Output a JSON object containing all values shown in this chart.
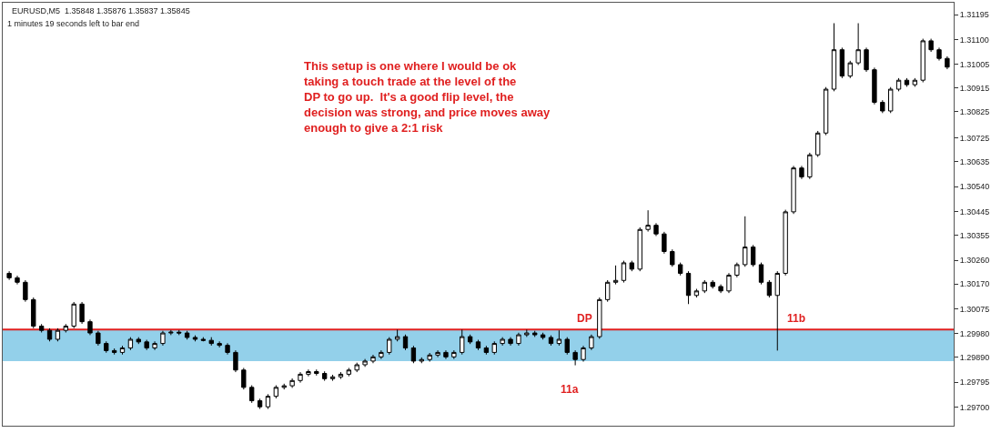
{
  "chart_data": {
    "type": "candlestick",
    "annotations": [
      "EURUSD,M5  1.35848 1.35876 1.35837 1.35845",
      "1 minutes 19 seconds left to bar end",
      "This setup is one where I would be ok taking a touch trade at the level of the DP to go up.  It's a good flip level, the decision was strong, and price moves away enough to give a 2:1 risk",
      "DP",
      "11a",
      "11b"
    ],
    "categories": [
      null,
      null,
      null,
      null,
      null,
      null,
      null,
      null,
      null,
      null,
      null,
      null,
      null,
      null,
      null,
      null,
      null,
      null,
      null,
      null,
      null,
      null,
      null,
      null,
      null,
      null,
      null,
      null,
      null,
      null,
      null,
      null,
      null,
      null,
      null,
      null,
      null,
      null,
      null,
      null,
      null,
      null,
      null,
      null,
      null,
      null,
      null,
      null,
      null,
      null,
      null,
      null,
      null,
      null,
      null,
      null,
      null,
      null,
      null,
      null,
      null,
      null,
      null,
      null,
      null,
      null,
      null,
      null,
      null,
      null,
      null,
      null,
      null,
      null,
      null,
      null,
      null,
      null,
      null,
      null,
      null,
      null,
      null,
      null,
      null,
      null,
      null,
      null,
      null,
      null,
      null,
      null,
      null,
      null,
      null,
      null,
      null,
      null,
      null,
      null,
      null,
      null,
      null,
      null,
      null,
      null,
      null,
      null,
      null,
      null,
      null,
      null,
      null,
      null,
      null,
      null,
      null
    ],
    "ohlc": [
      [
        1.3021,
        1.30218,
        1.30185,
        1.30193
      ],
      [
        1.30193,
        1.30201,
        1.30168,
        1.30176
      ],
      [
        1.30176,
        1.30184,
        1.30102,
        1.3011
      ],
      [
        1.3011,
        1.30118,
        1.30001,
        1.30009
      ],
      [
        1.30009,
        1.30017,
        1.29985,
        1.29993
      ],
      [
        1.29993,
        1.30001,
        1.29951,
        1.29959
      ],
      [
        1.29959,
        1.30001,
        1.29951,
        1.29993
      ],
      [
        1.29993,
        1.30017,
        1.29985,
        1.30009
      ],
      [
        1.30009,
        1.30101,
        1.30001,
        1.30093
      ],
      [
        1.30093,
        1.30101,
        1.30018,
        1.30026
      ],
      [
        1.30026,
        1.30034,
        1.29975,
        1.29983
      ],
      [
        1.29983,
        1.29991,
        1.29935,
        1.29943
      ],
      [
        1.29943,
        1.29951,
        1.29908,
        1.29916
      ],
      [
        1.29916,
        1.29924,
        1.29901,
        1.29909
      ],
      [
        1.29909,
        1.29934,
        1.29901,
        1.29926
      ],
      [
        1.29926,
        1.29967,
        1.29918,
        1.29959
      ],
      [
        1.29959,
        1.29967,
        1.29941,
        1.29949
      ],
      [
        1.29949,
        1.29957,
        1.29918,
        1.29926
      ],
      [
        1.29926,
        1.29951,
        1.29918,
        1.29943
      ],
      [
        1.29943,
        1.29991,
        1.29935,
        1.29983
      ],
      [
        1.29983,
        1.29994,
        1.29975,
        1.29986
      ],
      [
        1.29986,
        1.29994,
        1.29975,
        1.29983
      ],
      [
        1.29983,
        1.29991,
        1.29958,
        1.29966
      ],
      [
        1.29966,
        1.29974,
        1.29951,
        1.29959
      ],
      [
        1.29959,
        1.29967,
        1.29951,
        1.29955
      ],
      [
        1.29955,
        1.29967,
        1.29935,
        1.29943
      ],
      [
        1.29943,
        1.29951,
        1.29928,
        1.29936
      ],
      [
        1.29936,
        1.29944,
        1.29901,
        1.29909
      ],
      [
        1.29909,
        1.29917,
        1.29834,
        1.29842
      ],
      [
        1.29842,
        1.2985,
        1.29768,
        1.29776
      ],
      [
        1.29776,
        1.29784,
        1.29717,
        1.29725
      ],
      [
        1.29725,
        1.29733,
        1.29694,
        1.29702
      ],
      [
        1.29702,
        1.2975,
        1.29694,
        1.29742
      ],
      [
        1.29742,
        1.29784,
        1.29734,
        1.29776
      ],
      [
        1.29776,
        1.2979,
        1.29768,
        1.29782
      ],
      [
        1.29782,
        1.2981,
        1.29774,
        1.29802
      ],
      [
        1.29802,
        1.29834,
        1.29794,
        1.29826
      ],
      [
        1.29826,
        1.29844,
        1.29818,
        1.29836
      ],
      [
        1.29836,
        1.29844,
        1.29821,
        1.29829
      ],
      [
        1.29829,
        1.29837,
        1.29801,
        1.29809
      ],
      [
        1.29809,
        1.29824,
        1.29801,
        1.29816
      ],
      [
        1.29816,
        1.29834,
        1.29808,
        1.29826
      ],
      [
        1.29826,
        1.2985,
        1.29818,
        1.29842
      ],
      [
        1.29842,
        1.2987,
        1.29834,
        1.29862
      ],
      [
        1.29862,
        1.29884,
        1.29854,
        1.29876
      ],
      [
        1.29876,
        1.299,
        1.29868,
        1.29892
      ],
      [
        1.29892,
        1.29917,
        1.29884,
        1.29909
      ],
      [
        1.29909,
        1.29967,
        1.29901,
        1.29959
      ],
      [
        1.29959,
        1.29996,
        1.29951,
        1.29969
      ],
      [
        1.29969,
        1.29977,
        1.29918,
        1.29926
      ],
      [
        1.29926,
        1.29934,
        1.29868,
        1.29876
      ],
      [
        1.29876,
        1.2989,
        1.29868,
        1.29882
      ],
      [
        1.29882,
        1.29907,
        1.29874,
        1.29899
      ],
      [
        1.29899,
        1.29917,
        1.29891,
        1.29909
      ],
      [
        1.29909,
        1.29917,
        1.29884,
        1.29892
      ],
      [
        1.29892,
        1.29917,
        1.29884,
        1.29909
      ],
      [
        1.29909,
        1.29996,
        1.29901,
        1.29969
      ],
      [
        1.29969,
        1.29977,
        1.29941,
        1.29949
      ],
      [
        1.29949,
        1.29957,
        1.29918,
        1.29926
      ],
      [
        1.29926,
        1.29934,
        1.29901,
        1.29909
      ],
      [
        1.29909,
        1.29951,
        1.29901,
        1.29943
      ],
      [
        1.29943,
        1.29967,
        1.29935,
        1.29959
      ],
      [
        1.29959,
        1.29967,
        1.29935,
        1.29943
      ],
      [
        1.29943,
        1.29984,
        1.29935,
        1.29976
      ],
      [
        1.29976,
        1.29996,
        1.29968,
        1.29983
      ],
      [
        1.29983,
        1.29991,
        1.29968,
        1.29976
      ],
      [
        1.29976,
        1.29984,
        1.29958,
        1.29966
      ],
      [
        1.29966,
        1.29974,
        1.29935,
        1.29943
      ],
      [
        1.29943,
        1.29993,
        1.29935,
        1.29959
      ],
      [
        1.29959,
        1.29967,
        1.29901,
        1.29909
      ],
      [
        1.29909,
        1.29917,
        1.2986,
        1.29882
      ],
      [
        1.29882,
        1.29934,
        1.29874,
        1.29926
      ],
      [
        1.29926,
        1.29977,
        1.29918,
        1.29969
      ],
      [
        1.29969,
        1.30118,
        1.29961,
        1.3011
      ],
      [
        1.3011,
        1.30184,
        1.30102,
        1.30176
      ],
      [
        1.30176,
        1.3024,
        1.30168,
        1.30183
      ],
      [
        1.30183,
        1.30258,
        1.30175,
        1.3025
      ],
      [
        1.3025,
        1.30258,
        1.30218,
        1.30226
      ],
      [
        1.30226,
        1.30385,
        1.30218,
        1.30377
      ],
      [
        1.30377,
        1.3045,
        1.30369,
        1.30393
      ],
      [
        1.30393,
        1.30401,
        1.30352,
        1.3036
      ],
      [
        1.3036,
        1.30368,
        1.30285,
        1.30293
      ],
      [
        1.30293,
        1.30301,
        1.30235,
        1.30243
      ],
      [
        1.30243,
        1.30251,
        1.30202,
        1.3021
      ],
      [
        1.3021,
        1.30218,
        1.30093,
        1.30126
      ],
      [
        1.30126,
        1.30151,
        1.30118,
        1.30143
      ],
      [
        1.30143,
        1.30184,
        1.30135,
        1.30176
      ],
      [
        1.30176,
        1.30184,
        1.30152,
        1.3016
      ],
      [
        1.3016,
        1.30168,
        1.30135,
        1.30143
      ],
      [
        1.30143,
        1.30211,
        1.30135,
        1.30203
      ],
      [
        1.30203,
        1.30251,
        1.30195,
        1.30243
      ],
      [
        1.30243,
        1.30427,
        1.30235,
        1.3031
      ],
      [
        1.3031,
        1.30318,
        1.30235,
        1.30243
      ],
      [
        1.30243,
        1.30251,
        1.30168,
        1.30176
      ],
      [
        1.30176,
        1.30184,
        1.30118,
        1.30126
      ],
      [
        1.30126,
        1.30218,
        1.29916,
        1.3021
      ],
      [
        1.3021,
        1.30452,
        1.30202,
        1.30444
      ],
      [
        1.30444,
        1.30619,
        1.30436,
        1.30611
      ],
      [
        1.30611,
        1.30619,
        1.30569,
        1.30577
      ],
      [
        1.30577,
        1.30669,
        1.30569,
        1.30661
      ],
      [
        1.30661,
        1.30752,
        1.30653,
        1.30744
      ],
      [
        1.30744,
        1.30919,
        1.30736,
        1.30911
      ],
      [
        1.30911,
        1.31162,
        1.30903,
        1.31061
      ],
      [
        1.31061,
        1.31069,
        1.30953,
        1.30961
      ],
      [
        1.30961,
        1.31019,
        1.30953,
        1.31011
      ],
      [
        1.31011,
        1.31162,
        1.31003,
        1.31061
      ],
      [
        1.31061,
        1.31069,
        1.30977,
        1.30985
      ],
      [
        1.30985,
        1.30993,
        1.30853,
        1.30861
      ],
      [
        1.30861,
        1.30869,
        1.3082,
        1.30828
      ],
      [
        1.30828,
        1.30919,
        1.3082,
        1.30911
      ],
      [
        1.30911,
        1.30953,
        1.30903,
        1.30945
      ],
      [
        1.30945,
        1.30953,
        1.3092,
        1.30928
      ],
      [
        1.30928,
        1.30953,
        1.3092,
        1.30945
      ],
      [
        1.30945,
        1.31103,
        1.30937,
        1.31095
      ],
      [
        1.31095,
        1.31103,
        1.31053,
        1.31061
      ],
      [
        1.31061,
        1.31069,
        1.3102,
        1.31028
      ],
      [
        1.31028,
        1.31036,
        1.30987,
        1.30995
      ]
    ],
    "color": "#000000",
    "ylim": [
      1.2963,
      1.3124
    ],
    "yticks": [
      {
        "value": 1.297,
        "label": "1.29700"
      },
      1.29795,
      {
        "value": 1.2989,
        "label": "1.29890"
      },
      {
        "value": 1.2998,
        "label": "1.29980"
      },
      1.30075,
      {
        "value": 1.3017,
        "label": "1.30170"
      },
      {
        "value": 1.3026,
        "label": "1.30260"
      },
      1.30355,
      1.30445,
      {
        "value": 1.3054,
        "label": "1.30540"
      },
      1.30635,
      1.30725,
      1.30825,
      1.30915,
      1.31005,
      {
        "value": 1.311,
        "label": "1.31100"
      },
      1.31195
    ],
    "ref_lines": [
      {
        "axis": "y",
        "value": 1.29996,
        "color": "#e02020"
      }
    ],
    "bands": [
      {
        "axis": "y",
        "from": 1.29876,
        "to": 1.29996,
        "color": "#93d0ea"
      }
    ],
    "grid": false,
    "tick_labels": "y"
  }
}
